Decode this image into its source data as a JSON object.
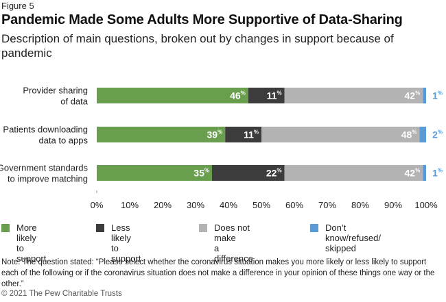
{
  "figure_label": "Figure 5",
  "title": "Pandemic Made Some Adults More Supportive of Data-Sharing",
  "subtitle": "Description of main questions, broken out by changes in support because of pandemic",
  "note": "Note: The question stated: “Please select whether the coronavirus situation makes you more likely or less likely to support each of the following or if the coronavirus situation does not make a difference in your opinion of these things one way or the other.”",
  "copyright": "© 2021 The Pew Charitable Trusts",
  "colors": {
    "more_likely": "#6a9e4f",
    "less_likely": "#3c3c3c",
    "no_difference": "#b3b3b3",
    "dont_know": "#5b9bd5",
    "outside_label": "#5b9bd5"
  },
  "chart_data": {
    "type": "bar",
    "orientation": "horizontal",
    "stacked": true,
    "categories": [
      "Provider sharing\nof data",
      "Patients downloading\ndata to apps",
      "Government standards\nto improve matching"
    ],
    "series": [
      {
        "name": "More likely\nto support",
        "color_key": "more_likely",
        "values": [
          46,
          39,
          35
        ]
      },
      {
        "name": "Less likely\nto support",
        "color_key": "less_likely",
        "values": [
          11,
          11,
          22
        ]
      },
      {
        "name": "Does not make\na difference",
        "color_key": "no_difference",
        "values": [
          42,
          48,
          42
        ]
      },
      {
        "name": "Don’t know/refused/\nskipped",
        "color_key": "dont_know",
        "values": [
          1,
          2,
          1
        ]
      }
    ],
    "value_suffix": "%",
    "xlim": [
      0,
      100
    ],
    "xticks": [
      0,
      10,
      20,
      30,
      40,
      50,
      60,
      70,
      80,
      90,
      100
    ],
    "xtick_labels": [
      "0%",
      "10%",
      "20%",
      "30%",
      "40%",
      "50%",
      "60%",
      "70%",
      "80%",
      "90%",
      "100%"
    ],
    "grid": false,
    "legend_position": "bottom"
  }
}
